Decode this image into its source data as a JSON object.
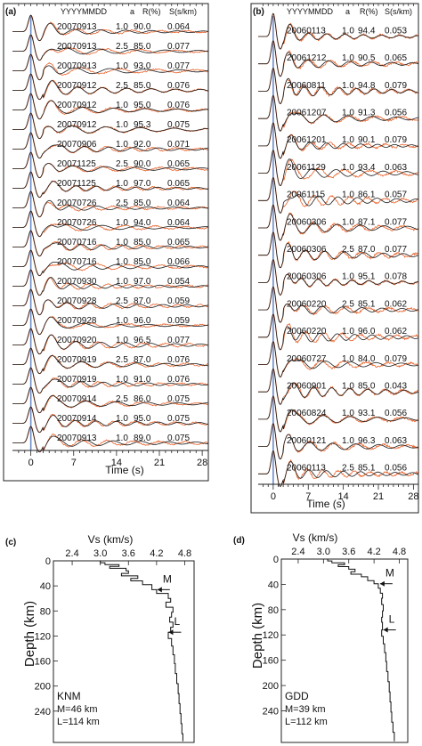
{
  "figure": {
    "panels": [
      {
        "id": "a",
        "label": "(a)",
        "header": {
          "date": "YYYYMMDD",
          "a": "a",
          "r": "R(%)",
          "s": "S(s/km)"
        },
        "xlabel": "Time (s)",
        "xticks": [
          "0",
          "7",
          "14",
          "21",
          "28"
        ],
        "records": [
          {
            "date": "20070913",
            "a": "1.0",
            "r": "90.0",
            "s": "0.064"
          },
          {
            "date": "20070913",
            "a": "2.5",
            "r": "85.0",
            "s": "0.077"
          },
          {
            "date": "20070913",
            "a": "1.0",
            "r": "93.0",
            "s": "0.077"
          },
          {
            "date": "20070912",
            "a": "2.5",
            "r": "85.0",
            "s": "0.076"
          },
          {
            "date": "20070912",
            "a": "1.0",
            "r": "95.0",
            "s": "0.076"
          },
          {
            "date": "20070912",
            "a": "1.0",
            "r": "95.3",
            "s": "0.075"
          },
          {
            "date": "20070906",
            "a": "1.0",
            "r": "92.0",
            "s": "0.071"
          },
          {
            "date": "20071125",
            "a": "2.5",
            "r": "90.0",
            "s": "0.065"
          },
          {
            "date": "20071125",
            "a": "1.0",
            "r": "97.0",
            "s": "0.065"
          },
          {
            "date": "20070726",
            "a": "2.5",
            "r": "85.0",
            "s": "0.064"
          },
          {
            "date": "20070726",
            "a": "1.0",
            "r": "94.0",
            "s": "0.064"
          },
          {
            "date": "20070716",
            "a": "1.0",
            "r": "85.0",
            "s": "0.065"
          },
          {
            "date": "20070716",
            "a": "1.0",
            "r": "85.0",
            "s": "0.066"
          },
          {
            "date": "20070930",
            "a": "1.0",
            "r": "97.0",
            "s": "0.054"
          },
          {
            "date": "20070928",
            "a": "2.5",
            "r": "87.0",
            "s": "0.059"
          },
          {
            "date": "20070928",
            "a": "1.0",
            "r": "96.0",
            "s": "0.059"
          },
          {
            "date": "20070920",
            "a": "1.0",
            "r": "96.5",
            "s": "0.077"
          },
          {
            "date": "20070919",
            "a": "2.5",
            "r": "87.0",
            "s": "0.076"
          },
          {
            "date": "20070919",
            "a": "1.0",
            "r": "91.0",
            "s": "0.076"
          },
          {
            "date": "20070914",
            "a": "2.5",
            "r": "86.0",
            "s": "0.075"
          },
          {
            "date": "20070914",
            "a": "1.0",
            "r": "95.0",
            "s": "0.075"
          },
          {
            "date": "20070913",
            "a": "1.0",
            "r": "89.0",
            "s": "0.075"
          }
        ]
      },
      {
        "id": "b",
        "label": "(b)",
        "header": {
          "date": "YYYYMMDD",
          "a": "a",
          "r": "R(%)",
          "s": "S(s/km)"
        },
        "xlabel": "Time (s)",
        "xticks": [
          "0",
          "7",
          "14",
          "21",
          "28"
        ],
        "records": [
          {
            "date": "20060113",
            "a": "1.0",
            "r": "94.4",
            "s": "0.053"
          },
          {
            "date": "20061212",
            "a": "1.0",
            "r": "90.5",
            "s": "0.065"
          },
          {
            "date": "20060811",
            "a": "1.0",
            "r": "94.8",
            "s": "0.079"
          },
          {
            "date": "20061207",
            "a": "1.0",
            "r": "91.3",
            "s": "0.056"
          },
          {
            "date": "20061201",
            "a": "1.0",
            "r": "90.1",
            "s": "0.079"
          },
          {
            "date": "20061129",
            "a": "1.0",
            "r": "93.4",
            "s": "0.063"
          },
          {
            "date": "20061115",
            "a": "1.0",
            "r": "86.1",
            "s": "0.057"
          },
          {
            "date": "20060306",
            "a": "1.0",
            "r": "87.1",
            "s": "0.077"
          },
          {
            "date": "20060306",
            "a": "2.5",
            "r": "87.0",
            "s": "0.077"
          },
          {
            "date": "20060306",
            "a": "1.0",
            "r": "95.1",
            "s": "0.078"
          },
          {
            "date": "20060220",
            "a": "2.5",
            "r": "85.1",
            "s": "0.062"
          },
          {
            "date": "20060220",
            "a": "1.0",
            "r": "96.0",
            "s": "0.062"
          },
          {
            "date": "20060727",
            "a": "1.0",
            "r": "84.0",
            "s": "0.079"
          },
          {
            "date": "20060901",
            "a": "1.0",
            "r": "85.0",
            "s": "0.043"
          },
          {
            "date": "20060824",
            "a": "1.0",
            "r": "93.1",
            "s": "0.056"
          },
          {
            "date": "20060121",
            "a": "1.0",
            "r": "96.3",
            "s": "0.063"
          },
          {
            "date": "20060113",
            "a": "2.5",
            "r": "85.1",
            "s": "0.056"
          }
        ]
      },
      {
        "id": "c",
        "label": "(c)",
        "xlabel": "Vs (km/s)",
        "ylabel": "Depth (km)",
        "xticks": [
          "2.4",
          "3.0",
          "3.6",
          "4.2",
          "4.8"
        ],
        "yticks": [
          "0",
          "40",
          "80",
          "120",
          "160",
          "200",
          "240"
        ],
        "station": "KNM",
        "moho": "M=46 km",
        "lab": "L=114 km",
        "marker_m": "M",
        "marker_l": "L"
      },
      {
        "id": "d",
        "label": "(d)",
        "xlabel": "Vs (km/s)",
        "ylabel": "Depth (km)",
        "xticks": [
          "2.4",
          "3.0",
          "3.6",
          "4.2",
          "4.8"
        ],
        "yticks": [
          "0",
          "40",
          "80",
          "120",
          "160",
          "200",
          "240"
        ],
        "station": "GDD",
        "moho": "M=39 km",
        "lab": "L=112 km",
        "marker_m": "M",
        "marker_l": "L"
      }
    ]
  },
  "colors": {
    "observed": "#1a1a1a",
    "synthetic": "#e8632b",
    "accent": "#6c8cc8"
  }
}
